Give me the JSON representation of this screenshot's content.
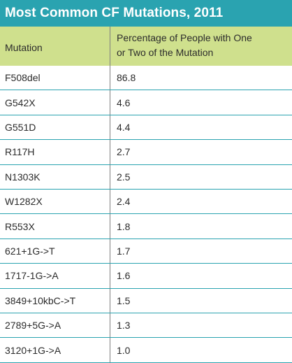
{
  "title": "Most Common CF Mutations, 2011",
  "colors": {
    "title_background": "#2aa3b0",
    "header_background": "#cfe08d",
    "row_divider": "#2aa3b0",
    "text": "#2b2b2b"
  },
  "table": {
    "columns": {
      "mutation": "Mutation",
      "percentage_line1": "Percentage of People with One",
      "percentage_line2": "or Two of the Mutation"
    },
    "rows": [
      {
        "mutation": "F508del",
        "percentage": "86.8"
      },
      {
        "mutation": "G542X",
        "percentage": "4.6"
      },
      {
        "mutation": "G551D",
        "percentage": "4.4"
      },
      {
        "mutation": "R117H",
        "percentage": "2.7"
      },
      {
        "mutation": "N1303K",
        "percentage": "2.5"
      },
      {
        "mutation": "W1282X",
        "percentage": "2.4"
      },
      {
        "mutation": "R553X",
        "percentage": "1.8"
      },
      {
        "mutation": "621+1G->T",
        "percentage": "1.7"
      },
      {
        "mutation": "1717-1G->A",
        "percentage": "1.6"
      },
      {
        "mutation": "3849+10kbC->T",
        "percentage": "1.5"
      },
      {
        "mutation": "2789+5G->A",
        "percentage": "1.3"
      },
      {
        "mutation": "3120+1G->A",
        "percentage": "1.0"
      }
    ]
  }
}
